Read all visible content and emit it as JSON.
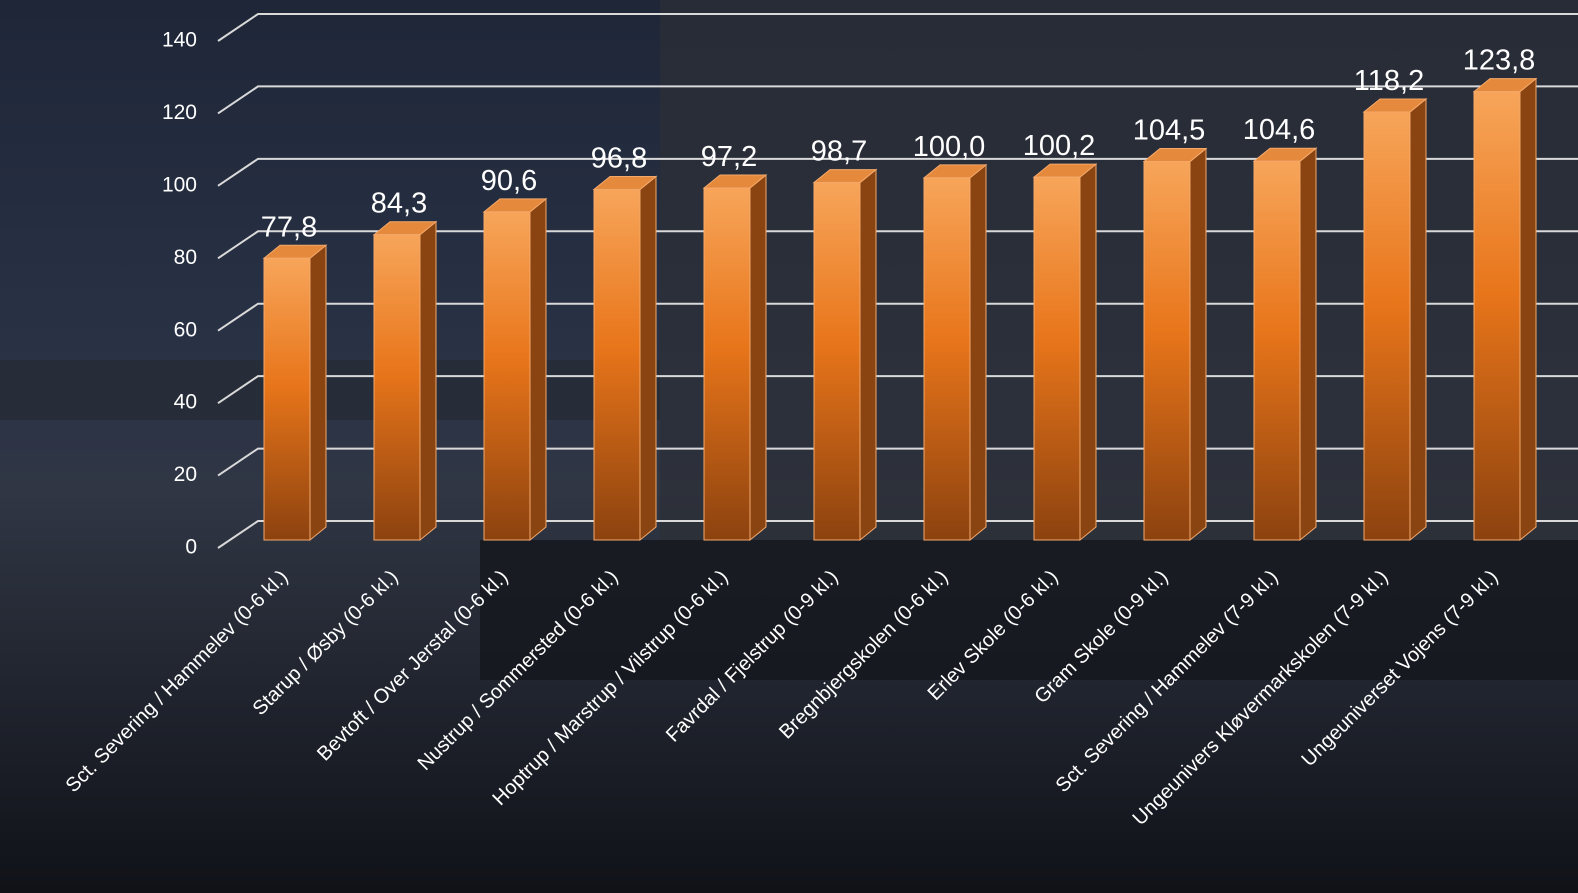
{
  "chart_data": {
    "type": "bar3d",
    "categories": [
      "Sct. Severing / Hammelev (0-6 kl.)",
      "Starup / Øsby (0-6 kl.)",
      "Bevtoft / Over Jerstal (0-6 kl.)",
      "Nustrup / Sommersted (0-6 kl.)",
      "Hoptrup / Marstrup / Vilstrup (0-6 kl.)",
      "Favrdal / Fjelstrup (0-9 kl.)",
      "Bregnbjergskolen (0-6 kl.)",
      "Erlev Skole (0-6 kl.)",
      "Gram Skole (0-9 kl.)",
      "Sct. Severing / Hammelev (7-9 kl.)",
      "Ungeunivers Kløvermarkskolen (7-9 kl.)",
      "Ungeuniverset Vojens (7-9 kl.)"
    ],
    "values": [
      77.8,
      84.3,
      90.6,
      96.8,
      97.2,
      98.7,
      100.0,
      100.2,
      104.5,
      104.6,
      118.2,
      123.8
    ],
    "value_labels": [
      "77,8",
      "84,3",
      "90,6",
      "96,8",
      "97,2",
      "98,7",
      "100,0",
      "100,2",
      "104,5",
      "104,6",
      "118,2",
      "123,8"
    ],
    "color": "#e8751a",
    "ylim": [
      0,
      140
    ],
    "yticks": [
      0,
      20,
      40,
      60,
      80,
      100,
      120,
      140
    ],
    "grid": true
  }
}
